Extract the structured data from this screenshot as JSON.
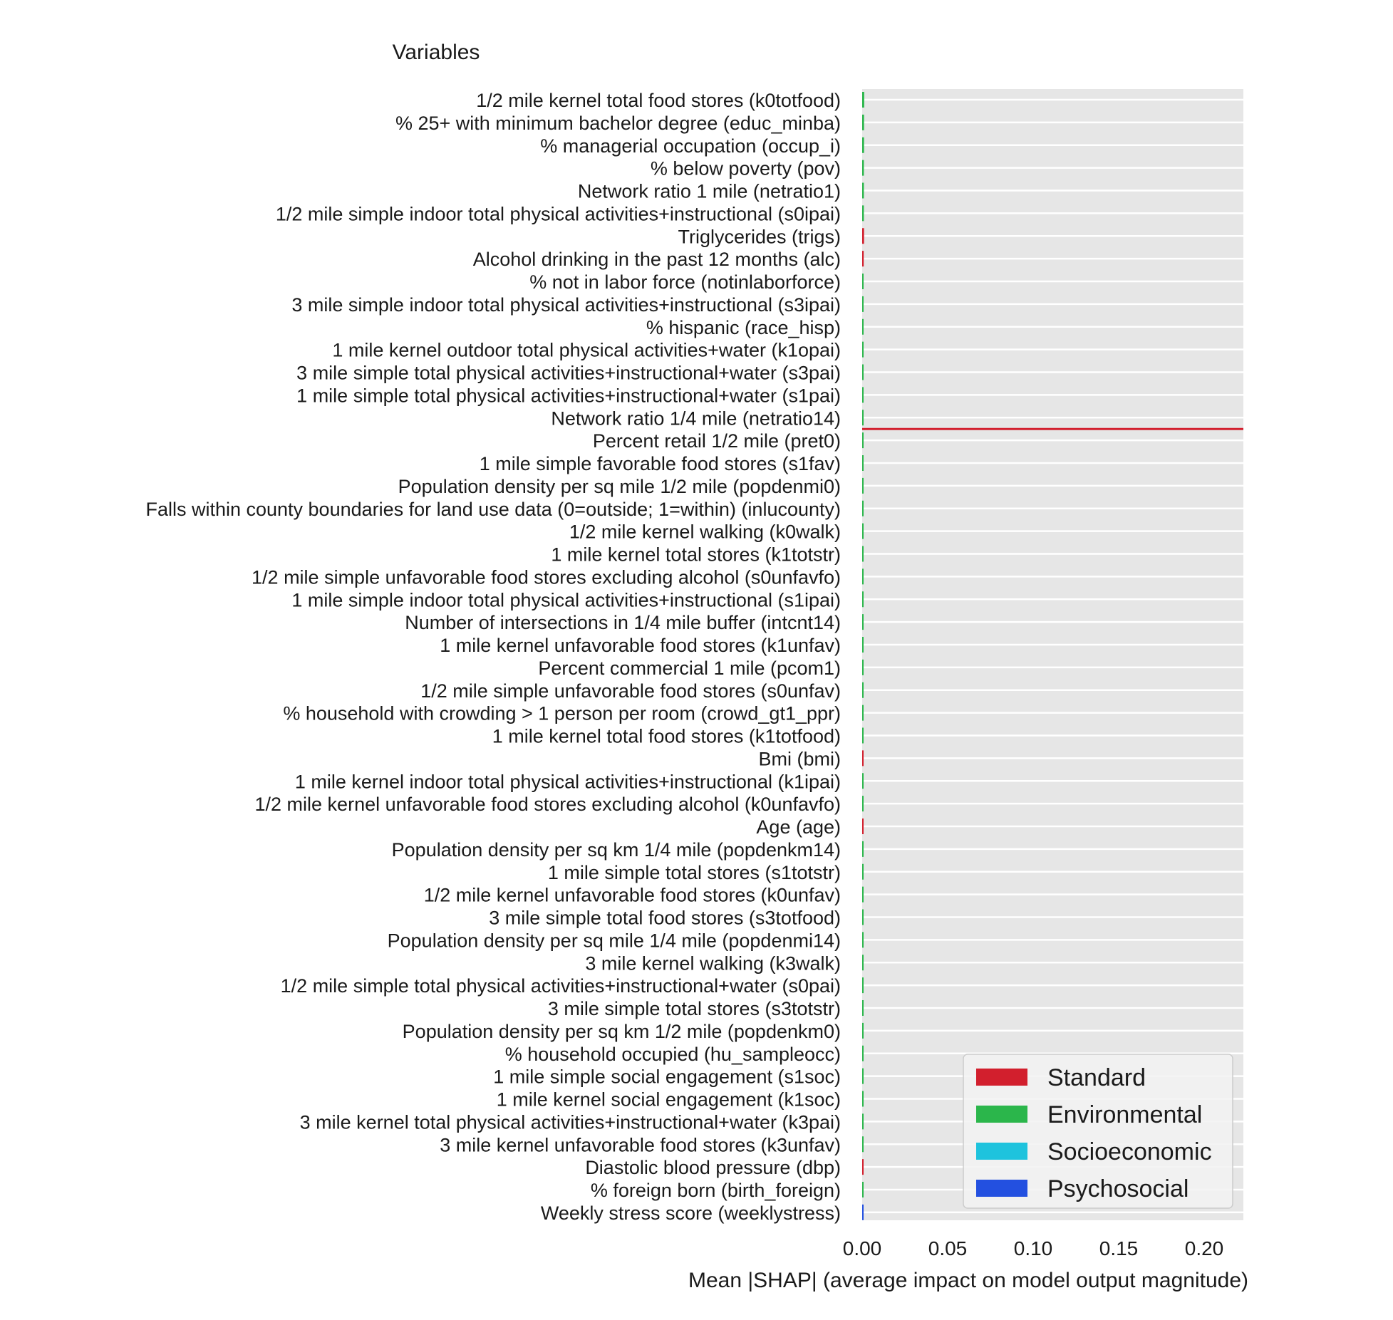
{
  "chart_data": {
    "type": "bar",
    "orientation": "horizontal",
    "title": "Variables",
    "xlabel": "Mean |SHAP| (average impact on model output magnitude)",
    "ylabel": "",
    "xlim": [
      0,
      0.225
    ],
    "xticks": [
      0.0,
      0.05,
      0.1,
      0.15,
      0.2
    ],
    "xtick_labels": [
      "0.00",
      "0.05",
      "0.10",
      "0.15",
      "0.20"
    ],
    "grid": true,
    "legend_position": "lower-right",
    "colors": {
      "Standard": "#d21f2d",
      "Environmental": "#2bb64b",
      "Socioeconomic": "#1ec3dd",
      "Psychosocial": "#2350e0",
      "background": "#e6e6e6",
      "gridline": "#ffffff"
    },
    "legend": [
      "Standard",
      "Environmental",
      "Socioeconomic",
      "Psychosocial"
    ],
    "categories": [
      "1/2 mile kernel total food stores (k0totfood)",
      "% 25+ with minimum bachelor degree (educ_minba)",
      "% managerial occupation (occup_i)",
      "% below poverty (pov)",
      "Network ratio 1 mile (netratio1)",
      "1/2 mile simple indoor total physical activities+instructional (s0ipai)",
      "Triglycerides (trigs)",
      "Alcohol drinking in the past 12 months (alc)",
      "% not in labor force (notinlaborforce)",
      "3 mile simple indoor total physical activities+instructional (s3ipai)",
      "% hispanic (race_hisp)",
      "1 mile kernel outdoor total physical activities+water (k1opai)",
      "3 mile simple total physical activities+instructional+water (s3pai)",
      "1 mile simple total physical activities+instructional+water (s1pai)",
      "Network ratio 1/4 mile (netratio14)",
      "Percent retail 1/2 mile (pret0)",
      "1 mile simple favorable food stores (s1fav)",
      "Population density per sq mile 1/2 mile (popdenmi0)",
      "Falls within county boundaries for land use data (0=outside; 1=within) (inlucounty)",
      "1/2 mile kernel walking (k0walk)",
      "1 mile kernel total stores (k1totstr)",
      "1/2 mile simple unfavorable food stores excluding alcohol (s0unfavfo)",
      "1 mile simple indoor total physical activities+instructional (s1ipai)",
      "Number of intersections in 1/4 mile buffer (intcnt14)",
      "1 mile kernel unfavorable food stores (k1unfav)",
      "Percent commercial 1 mile (pcom1)",
      "1/2 mile simple unfavorable food stores (s0unfav)",
      "% household with crowding > 1 person per room (crowd_gt1_ppr)",
      "1 mile kernel total food stores (k1totfood)",
      "Bmi (bmi)",
      "1 mile kernel indoor total physical activities+instructional (k1ipai)",
      "1/2 mile kernel unfavorable food stores excluding alcohol (k0unfavfo)",
      "Age (age)",
      "Population density per sq km 1/4 mile (popdenkm14)",
      "1 mile simple total stores (s1totstr)",
      "1/2 mile kernel unfavorable food stores (k0unfav)",
      "3 mile simple total food stores (s3totfood)",
      "Population density per sq mile 1/4 mile (popdenmi14)",
      "3 mile kernel walking (k3walk)",
      "1/2 mile simple total physical activities+instructional+water (s0pai)",
      "3 mile simple total stores (s3totstr)",
      "Population density per sq km 1/2 mile (popdenkm0)",
      "% household occupied (hu_sampleocc)",
      "1 mile simple social engagement (s1soc)",
      "1 mile kernel social engagement (k1soc)",
      "3 mile kernel total physical activities+instructional+water (k3pai)",
      "3 mile kernel unfavorable food stores (k3unfav)",
      "Diastolic blood pressure (dbp)",
      "% foreign born (birth_foreign)",
      "Weekly stress score (weeklystress)"
    ],
    "values": [
      0.0012,
      0.0011,
      0.0011,
      0.001,
      0.001,
      0.001,
      0.0011,
      0.0009,
      0.0008,
      0.0008,
      0.0008,
      0.0007,
      0.0007,
      0.0007,
      0.0007,
      0.0007,
      0.0006,
      0.0006,
      0.0005,
      0.0005,
      0.0005,
      0.0005,
      0.0005,
      0.0004,
      0.0004,
      0.0004,
      0.0003,
      0.0003,
      0.0003,
      0.0003,
      0.0002,
      0.0002,
      0.0002,
      0.0002,
      0.0002,
      0.0002,
      0.0002,
      0.0001,
      0.0001,
      0.0001,
      0.0001,
      0.0001,
      0.0001,
      0.0001,
      0.0001,
      0.0001,
      0.0001,
      0.0001,
      0.0001,
      0.0001
    ],
    "groups": [
      "Environmental",
      "Environmental",
      "Environmental",
      "Environmental",
      "Environmental",
      "Environmental",
      "Standard",
      "Standard",
      "Environmental",
      "Environmental",
      "Environmental",
      "Environmental",
      "Environmental",
      "Environmental",
      "Environmental",
      "Environmental",
      "Environmental",
      "Environmental",
      "Environmental",
      "Environmental",
      "Environmental",
      "Environmental",
      "Environmental",
      "Environmental",
      "Environmental",
      "Environmental",
      "Environmental",
      "Environmental",
      "Environmental",
      "Standard",
      "Environmental",
      "Environmental",
      "Standard",
      "Environmental",
      "Environmental",
      "Environmental",
      "Environmental",
      "Environmental",
      "Environmental",
      "Environmental",
      "Environmental",
      "Environmental",
      "Environmental",
      "Environmental",
      "Environmental",
      "Environmental",
      "Environmental",
      "Standard",
      "Environmental",
      "Psychosocial"
    ],
    "reference_line": {
      "after_index": 14,
      "color": "#d21f2d"
    }
  }
}
